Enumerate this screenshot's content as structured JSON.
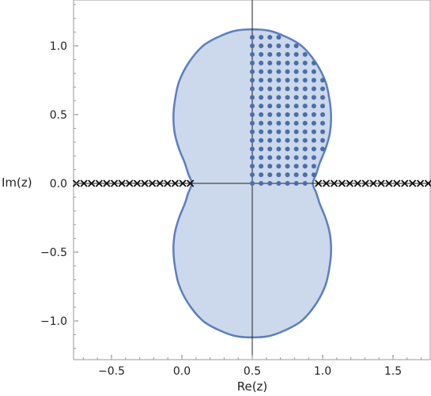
{
  "chart_data": {
    "type": "scatter",
    "title": "",
    "xlabel": "Re(z)",
    "ylabel": "Im(z)",
    "xlim": [
      -0.75,
      1.75
    ],
    "ylim": [
      -1.22,
      1.32
    ],
    "xticks": [
      -0.5,
      0.0,
      0.5,
      1.0,
      1.5
    ],
    "xtick_labels": [
      "−0.5",
      "0.0",
      "0.5",
      "1.0",
      "1.5"
    ],
    "yticks": [
      -1.0,
      -0.5,
      0.0,
      0.5,
      1.0
    ],
    "ytick_labels": [
      "−1.0",
      "−0.5",
      "0.0",
      "0.5",
      "1.0"
    ],
    "region": {
      "description_shape": "peanut",
      "left_extent": 0.07,
      "right_extent": 0.93,
      "neck_half_height": 0.0,
      "bulge_half_width": 0.55,
      "top": 1.12,
      "bottom": -1.12,
      "fill_color": "#c9d6ea",
      "edge_color": "#5b7fbd"
    },
    "boundary": [
      [
        0.5,
        1.12
      ],
      [
        0.62,
        1.11
      ],
      [
        0.73,
        1.07
      ],
      [
        0.85,
        1.0
      ],
      [
        0.95,
        0.88
      ],
      [
        1.02,
        0.74
      ],
      [
        1.05,
        0.6
      ],
      [
        1.06,
        0.48
      ],
      [
        1.05,
        0.36
      ],
      [
        1.02,
        0.25
      ],
      [
        0.98,
        0.15
      ],
      [
        0.955,
        0.07
      ],
      [
        0.93,
        0.0
      ],
      [
        0.955,
        -0.07
      ],
      [
        0.98,
        -0.15
      ],
      [
        1.02,
        -0.25
      ],
      [
        1.05,
        -0.36
      ],
      [
        1.06,
        -0.48
      ],
      [
        1.05,
        -0.6
      ],
      [
        1.02,
        -0.74
      ],
      [
        0.95,
        -0.88
      ],
      [
        0.85,
        -1.0
      ],
      [
        0.73,
        -1.07
      ],
      [
        0.62,
        -1.11
      ],
      [
        0.5,
        -1.12
      ],
      [
        0.38,
        -1.11
      ],
      [
        0.27,
        -1.07
      ],
      [
        0.15,
        -1.0
      ],
      [
        0.05,
        -0.88
      ],
      [
        -0.02,
        -0.74
      ],
      [
        -0.05,
        -0.6
      ],
      [
        -0.06,
        -0.48
      ],
      [
        -0.05,
        -0.36
      ],
      [
        -0.02,
        -0.25
      ],
      [
        0.02,
        -0.15
      ],
      [
        0.045,
        -0.07
      ],
      [
        0.07,
        0.0
      ],
      [
        0.045,
        0.07
      ],
      [
        0.02,
        0.15
      ],
      [
        -0.02,
        0.25
      ],
      [
        -0.05,
        0.36
      ],
      [
        -0.06,
        0.48
      ],
      [
        -0.05,
        0.6
      ],
      [
        -0.02,
        0.74
      ],
      [
        0.05,
        0.88
      ],
      [
        0.15,
        1.0
      ],
      [
        0.27,
        1.07
      ],
      [
        0.38,
        1.11
      ]
    ],
    "dot_grid": {
      "x_start": 0.5,
      "x_step": 0.0625,
      "x_end": 1.0625,
      "y_start": 0.0,
      "y_step": 0.0625,
      "y_end": 1.125,
      "color": "#4a6ea9"
    },
    "crosses": {
      "left": {
        "from": -0.75,
        "to": 0.06,
        "count": 16
      },
      "right": {
        "from": 0.97,
        "to": 1.75,
        "count": 15
      },
      "y": 0.0,
      "color": "#111111"
    },
    "crosshair": {
      "x": 0.5,
      "y": 0.0
    },
    "grid": false
  }
}
